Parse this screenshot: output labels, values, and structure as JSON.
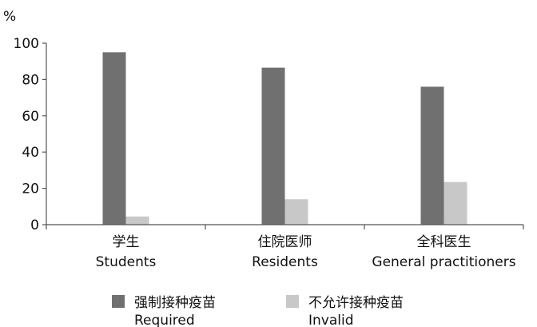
{
  "chart_data": {
    "type": "bar",
    "ylabel": "%",
    "ylim": [
      0,
      100
    ],
    "yticks": [
      0,
      20,
      40,
      60,
      80,
      100
    ],
    "grid": false,
    "legend_placement": "bottom",
    "categories": [
      {
        "zh": "学生",
        "en": "Students"
      },
      {
        "zh": "住院医师",
        "en": "Residents"
      },
      {
        "zh": "全科医生",
        "en": "General practitioners"
      }
    ],
    "series": [
      {
        "name_zh": "强制接种疫苗",
        "name_en": "Required",
        "color": "#707070",
        "values": [
          95,
          86.5,
          76
        ]
      },
      {
        "name_zh": "不允许接种疫苗",
        "name_en": "Invalid",
        "color": "#c8c8c8",
        "values": [
          4.5,
          14,
          23.5
        ]
      }
    ]
  }
}
